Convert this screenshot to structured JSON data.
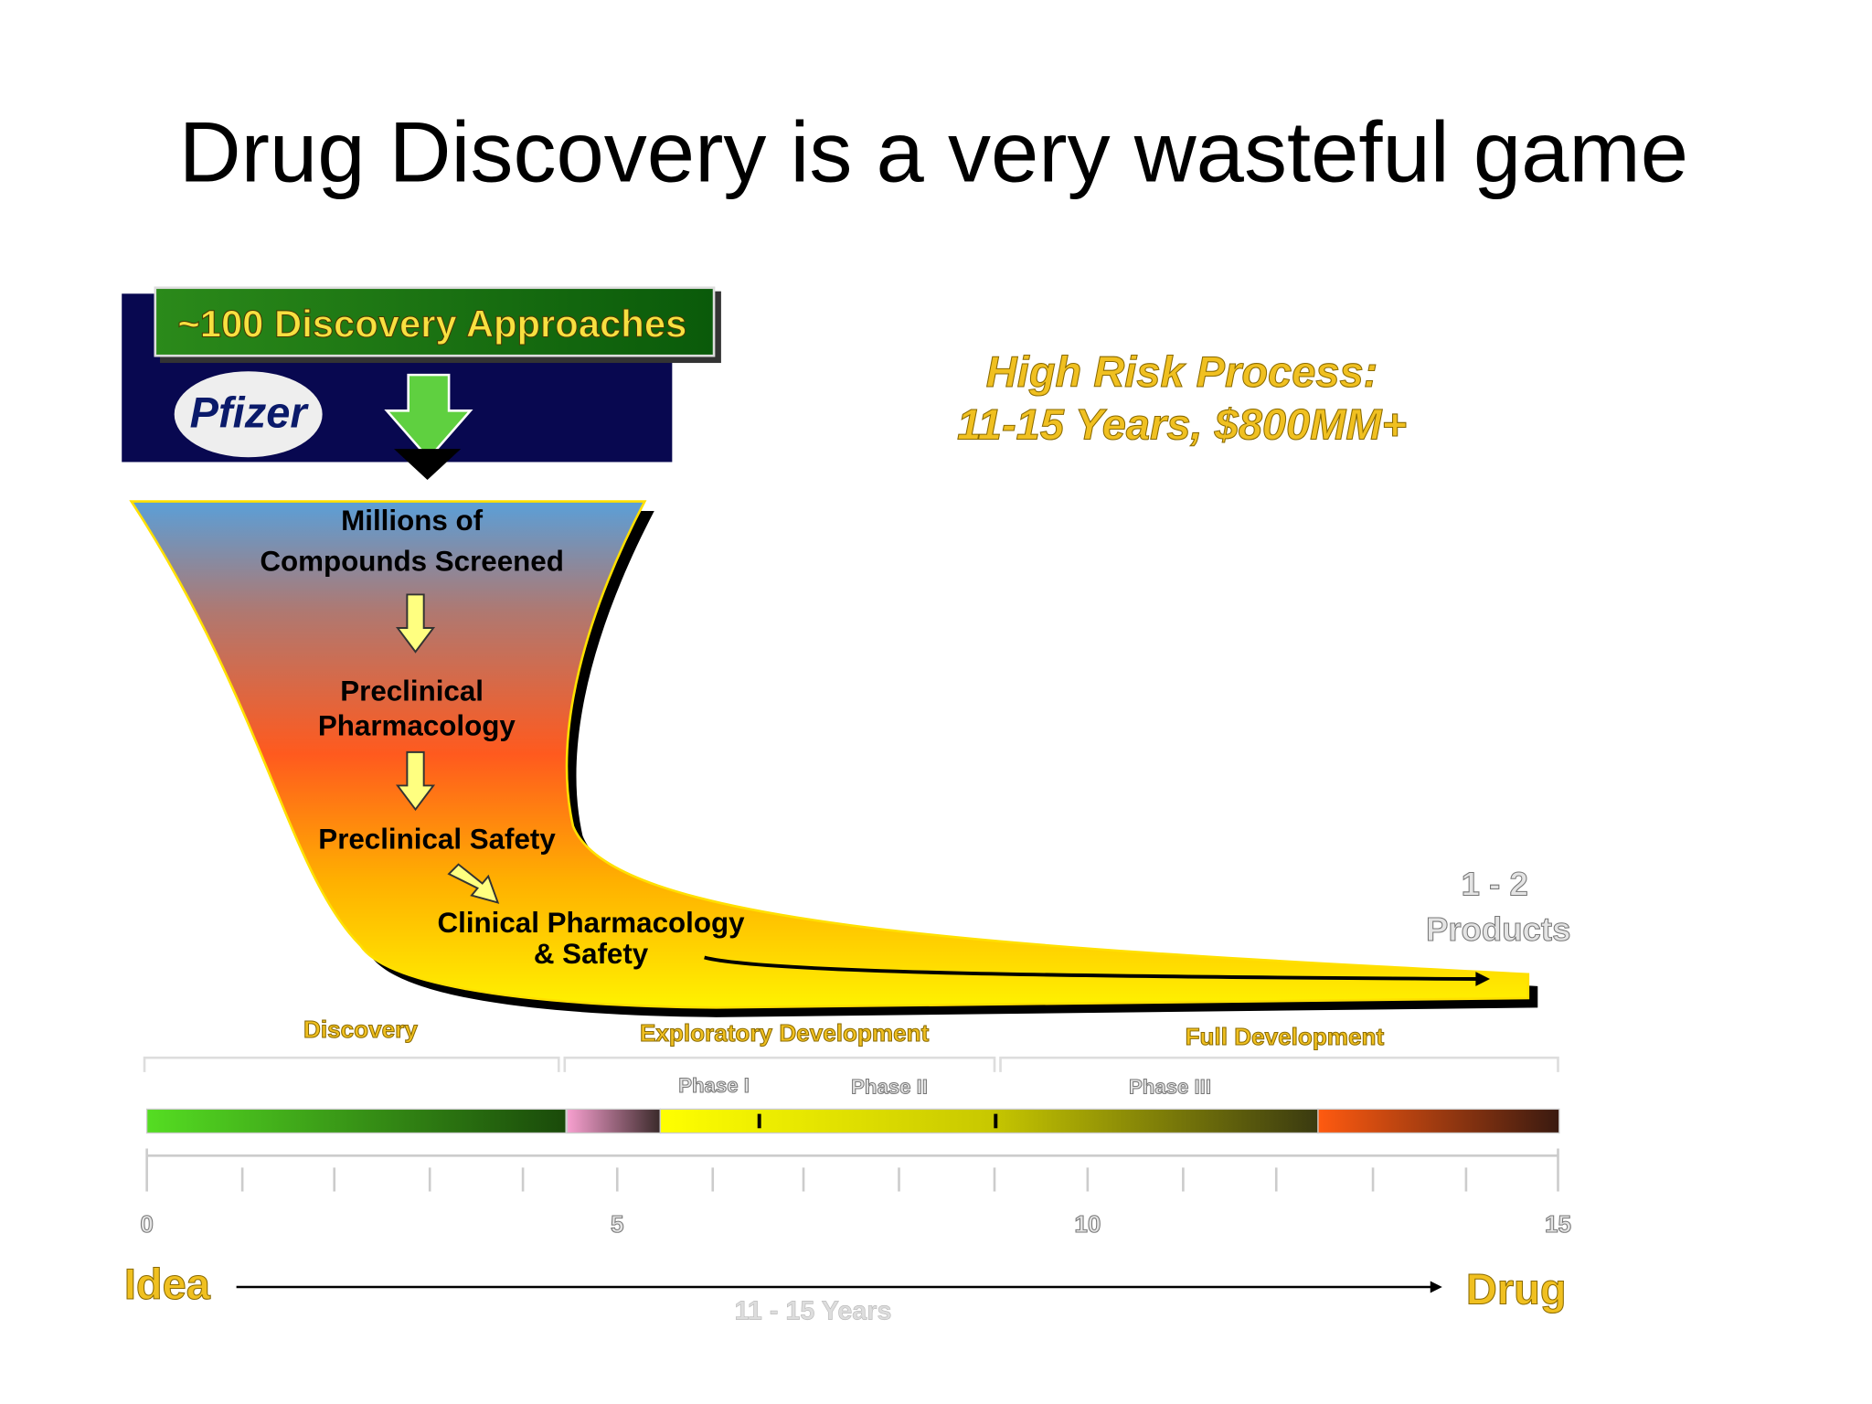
{
  "title": "Drug Discovery is a very wasteful game",
  "banner": "~100 Discovery Approaches",
  "logo": "Pfizer",
  "risk": {
    "line1": "High Risk Process:",
    "line2": "11-15 Years, $800MM+"
  },
  "funnel": {
    "stages": [
      [
        "Millions of",
        "Compounds Screened"
      ],
      [
        "Preclinical",
        "Pharmacology"
      ],
      [
        "Preclinical Safety"
      ],
      [
        "Clinical Pharmacology",
        "& Safety"
      ]
    ]
  },
  "outcome": [
    "1 - 2",
    "Products"
  ],
  "phases": [
    "Discovery",
    "Exploratory Development",
    "Full Development"
  ],
  "subphases": [
    "Phase I",
    "Phase II",
    "Phase III"
  ],
  "timeline": {
    "ticks": [
      0,
      5,
      10,
      15
    ],
    "start": "Idea",
    "end": "Drug",
    "duration": "11 - 15 Years"
  }
}
